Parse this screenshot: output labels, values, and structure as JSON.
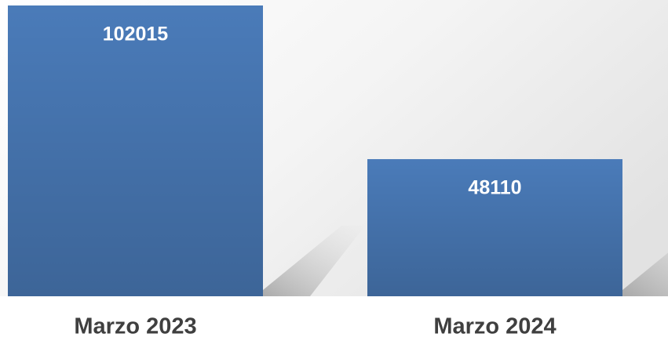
{
  "chart_data": {
    "type": "bar",
    "categories": [
      "Marzo 2023",
      "Marzo 2024"
    ],
    "values": [
      102015,
      48110
    ],
    "color": "#4a7bb9"
  }
}
